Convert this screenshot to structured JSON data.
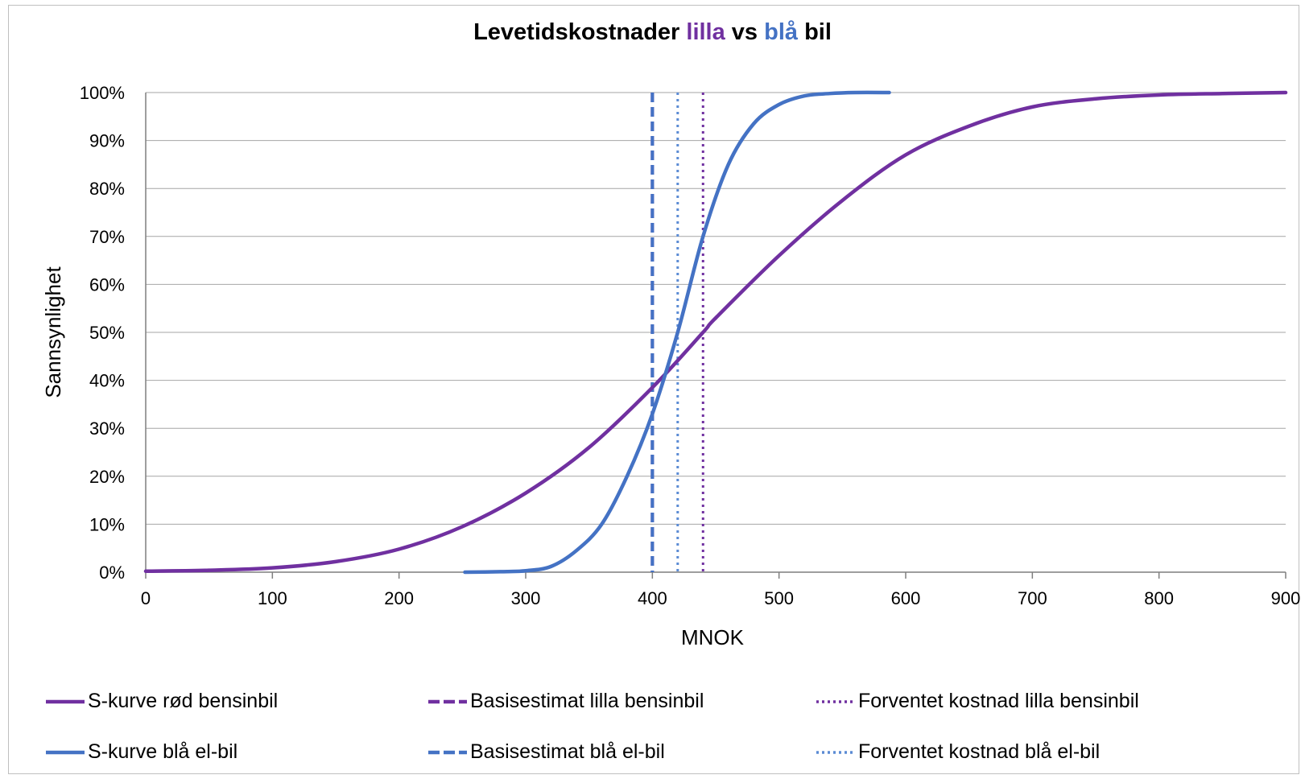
{
  "chart_data": {
    "type": "line",
    "title_parts": [
      {
        "text": "Levetidskostnader ",
        "color": "#000000"
      },
      {
        "text": "lilla",
        "color": "#7030a0"
      },
      {
        "text": " vs ",
        "color": "#000000"
      },
      {
        "text": "blå",
        "color": "#4472c4"
      },
      {
        "text": " bil",
        "color": "#000000"
      }
    ],
    "xlabel": "MNOK",
    "ylabel": "Sannsynlighet",
    "xlim": [
      0,
      900
    ],
    "ylim": [
      0,
      1
    ],
    "x_ticks": [
      0,
      100,
      200,
      300,
      400,
      500,
      600,
      700,
      800,
      900
    ],
    "y_ticks": [
      {
        "value": 0,
        "label": "0%"
      },
      {
        "value": 0.1,
        "label": "10%"
      },
      {
        "value": 0.2,
        "label": "20%"
      },
      {
        "value": 0.3,
        "label": "30%"
      },
      {
        "value": 0.4,
        "label": "40%"
      },
      {
        "value": 0.5,
        "label": "50%"
      },
      {
        "value": 0.6,
        "label": "60%"
      },
      {
        "value": 0.7,
        "label": "70%"
      },
      {
        "value": 0.8,
        "label": "80%"
      },
      {
        "value": 0.9,
        "label": "90%"
      },
      {
        "value": 1,
        "label": "100%"
      }
    ],
    "grid": true,
    "legend_position": "bottom",
    "series": [
      {
        "name": "S-kurve rød bensinbil",
        "color": "#7030a0",
        "style": "solid",
        "points": [
          [
            0,
            0.002
          ],
          [
            50,
            0.004
          ],
          [
            100,
            0.009
          ],
          [
            150,
            0.022
          ],
          [
            200,
            0.048
          ],
          [
            250,
            0.095
          ],
          [
            300,
            0.165
          ],
          [
            350,
            0.26
          ],
          [
            400,
            0.385
          ],
          [
            440,
            0.5
          ],
          [
            450,
            0.53
          ],
          [
            500,
            0.66
          ],
          [
            550,
            0.775
          ],
          [
            600,
            0.87
          ],
          [
            650,
            0.93
          ],
          [
            700,
            0.97
          ],
          [
            750,
            0.987
          ],
          [
            800,
            0.995
          ],
          [
            850,
            0.998
          ],
          [
            900,
            1.0
          ]
        ]
      },
      {
        "name": "S-kurve blå el-bil",
        "color": "#4472c4",
        "style": "solid",
        "points": [
          [
            252,
            0.0
          ],
          [
            280,
            0.001
          ],
          [
            300,
            0.003
          ],
          [
            320,
            0.012
          ],
          [
            340,
            0.045
          ],
          [
            360,
            0.1
          ],
          [
            380,
            0.2
          ],
          [
            400,
            0.33
          ],
          [
            420,
            0.5
          ],
          [
            440,
            0.7
          ],
          [
            460,
            0.85
          ],
          [
            480,
            0.935
          ],
          [
            500,
            0.975
          ],
          [
            520,
            0.993
          ],
          [
            540,
            0.998
          ],
          [
            560,
            1.0
          ],
          [
            587,
            1.0
          ]
        ]
      },
      {
        "name": "Basisestimat lilla bensinbil",
        "color": "#7030a0",
        "style": "dashed",
        "vline_x": 400
      },
      {
        "name": "Basisestimat blå el-bil",
        "color": "#4472c4",
        "style": "dashed",
        "vline_x": 400
      },
      {
        "name": "Forventet kostnad lilla bensinbil",
        "color": "#7030a0",
        "style": "dotted",
        "vline_x": 440
      },
      {
        "name": "Forventet kostnad blå el-bil",
        "color": "#5b8bd4",
        "style": "dotted",
        "vline_x": 420
      }
    ]
  }
}
